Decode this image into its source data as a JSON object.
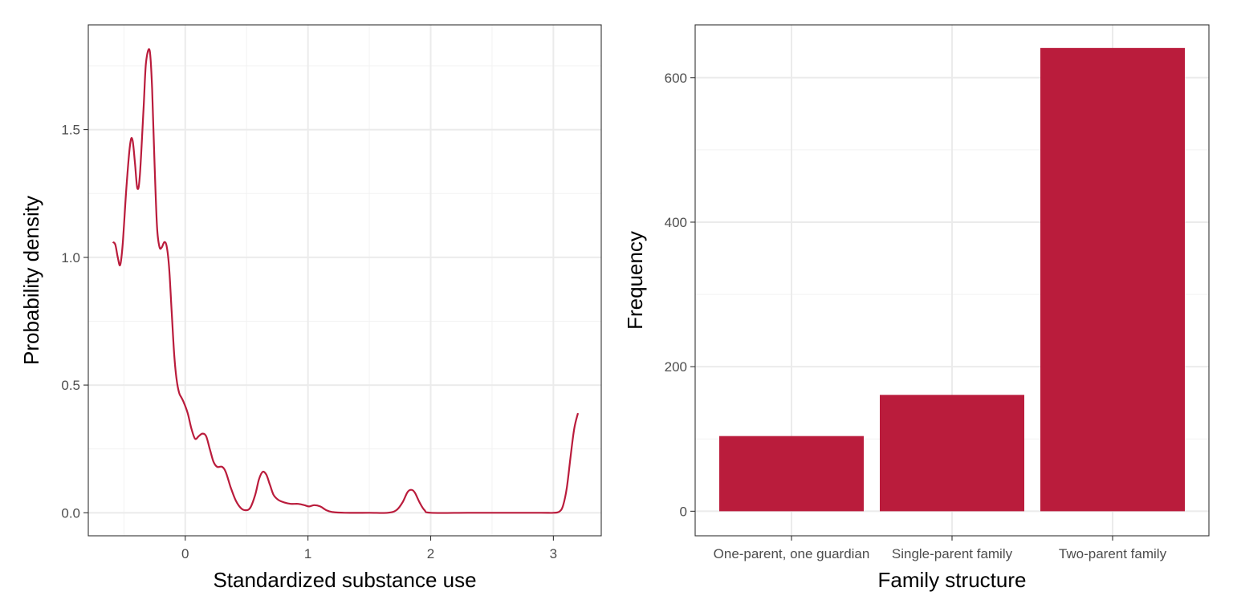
{
  "colors": {
    "accent": "#BA1C3C",
    "grid_major": "#EBEBEB",
    "grid_minor": "#F2F2F2",
    "panel_border": "#333333",
    "tick_text": "#4D4D4D"
  },
  "chart_data": [
    {
      "type": "line",
      "xlabel": "Standardized substance use",
      "ylabel": "Probability density",
      "xlim": [
        -0.79,
        3.39
      ],
      "ylim": [
        -0.09,
        1.91
      ],
      "x_ticks": [
        0,
        1,
        2,
        3
      ],
      "x_tick_labels": [
        "0",
        "1",
        "2",
        "3"
      ],
      "y_ticks": [
        0,
        0.5,
        1,
        1.5
      ],
      "y_tick_labels": [
        "0.0",
        "0.5",
        "1.0",
        "1.5"
      ],
      "grid": true,
      "series": [
        {
          "color": "#BA1C3C",
          "points": [
            [
              -0.59,
              1.06
            ],
            [
              -0.57,
              1.05
            ],
            [
              -0.55,
              1.0
            ],
            [
              -0.53,
              0.97
            ],
            [
              -0.51,
              1.05
            ],
            [
              -0.48,
              1.27
            ],
            [
              -0.45,
              1.44
            ],
            [
              -0.43,
              1.46
            ],
            [
              -0.41,
              1.37
            ],
            [
              -0.39,
              1.27
            ],
            [
              -0.37,
              1.32
            ],
            [
              -0.34,
              1.58
            ],
            [
              -0.32,
              1.76
            ],
            [
              -0.29,
              1.81
            ],
            [
              -0.27,
              1.66
            ],
            [
              -0.25,
              1.36
            ],
            [
              -0.23,
              1.12
            ],
            [
              -0.21,
              1.04
            ],
            [
              -0.19,
              1.04
            ],
            [
              -0.17,
              1.06
            ],
            [
              -0.15,
              1.04
            ],
            [
              -0.13,
              0.95
            ],
            [
              -0.11,
              0.78
            ],
            [
              -0.09,
              0.62
            ],
            [
              -0.07,
              0.52
            ],
            [
              -0.05,
              0.47
            ],
            [
              -0.03,
              0.45
            ],
            [
              -0.01,
              0.43
            ],
            [
              0.02,
              0.39
            ],
            [
              0.05,
              0.33
            ],
            [
              0.08,
              0.29
            ],
            [
              0.11,
              0.3
            ],
            [
              0.14,
              0.31
            ],
            [
              0.17,
              0.3
            ],
            [
              0.2,
              0.25
            ],
            [
              0.23,
              0.2
            ],
            [
              0.26,
              0.18
            ],
            [
              0.3,
              0.18
            ],
            [
              0.33,
              0.16
            ],
            [
              0.37,
              0.1
            ],
            [
              0.41,
              0.05
            ],
            [
              0.45,
              0.02
            ],
            [
              0.49,
              0.01
            ],
            [
              0.53,
              0.02
            ],
            [
              0.57,
              0.07
            ],
            [
              0.6,
              0.13
            ],
            [
              0.63,
              0.16
            ],
            [
              0.66,
              0.15
            ],
            [
              0.69,
              0.11
            ],
            [
              0.72,
              0.07
            ],
            [
              0.76,
              0.05
            ],
            [
              0.81,
              0.04
            ],
            [
              0.86,
              0.035
            ],
            [
              0.92,
              0.035
            ],
            [
              0.97,
              0.03
            ],
            [
              1.01,
              0.025
            ],
            [
              1.05,
              0.03
            ],
            [
              1.1,
              0.025
            ],
            [
              1.15,
              0.01
            ],
            [
              1.2,
              0.003
            ],
            [
              1.3,
              0.0
            ],
            [
              1.5,
              0.0
            ],
            [
              1.65,
              0.0
            ],
            [
              1.72,
              0.01
            ],
            [
              1.77,
              0.04
            ],
            [
              1.81,
              0.08
            ],
            [
              1.84,
              0.09
            ],
            [
              1.87,
              0.08
            ],
            [
              1.91,
              0.04
            ],
            [
              1.95,
              0.01
            ],
            [
              2.0,
              0.0
            ],
            [
              2.3,
              0.0
            ],
            [
              2.6,
              0.0
            ],
            [
              2.9,
              0.0
            ],
            [
              3.0,
              0.0
            ],
            [
              3.05,
              0.005
            ],
            [
              3.08,
              0.03
            ],
            [
              3.11,
              0.1
            ],
            [
              3.14,
              0.22
            ],
            [
              3.17,
              0.33
            ],
            [
              3.2,
              0.39
            ]
          ]
        }
      ]
    },
    {
      "type": "bar",
      "xlabel": "Family structure",
      "ylabel": "Frequency",
      "categories": [
        "One-parent, one guardian",
        "Single-parent family",
        "Two-parent family"
      ],
      "values": [
        104,
        161,
        641
      ],
      "ylim": [
        -34,
        673
      ],
      "y_ticks": [
        0,
        200,
        400,
        600
      ],
      "y_tick_labels": [
        "0",
        "200",
        "400",
        "600"
      ],
      "grid": true,
      "color": "#BA1C3C"
    }
  ]
}
